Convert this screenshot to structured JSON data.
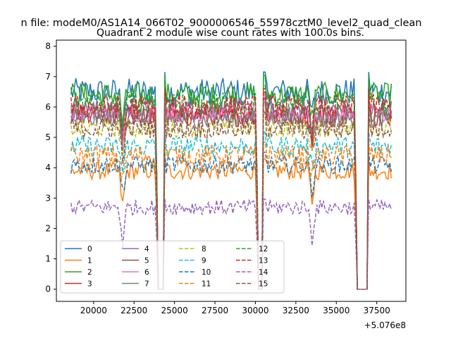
{
  "chart_data": {
    "type": "line",
    "suptitle": "n file: modeM0/AS1A14_066T02_9000006546_55978cztM0_level2_quad_clean",
    "title": "Quadrant 2 module wise count rates with 100.0s bins.",
    "xlabel": "",
    "ylabel": "",
    "x_offset_label": "+5.076e8",
    "xlim": [
      17700,
      39300
    ],
    "ylim": [
      -0.4,
      8.2
    ],
    "xticks": [
      20000,
      22500,
      25000,
      27500,
      30000,
      32500,
      35000,
      37500
    ],
    "xtick_labels": [
      "20000",
      "22500",
      "25000",
      "27500",
      "30000",
      "32500",
      "35000",
      "37500"
    ],
    "yticks": [
      0,
      1,
      2,
      3,
      4,
      5,
      6,
      7,
      8
    ],
    "ytick_labels": [
      "0",
      "1",
      "2",
      "3",
      "4",
      "5",
      "6",
      "7",
      "8"
    ],
    "x_range_data": [
      18600,
      38400
    ],
    "bin_seconds": 100,
    "gaps": [
      [
        23950,
        24350
      ],
      [
        30150,
        30500
      ],
      [
        36250,
        36950
      ]
    ],
    "dips": [
      {
        "x": 21800,
        "depth": 0.9
      },
      {
        "x": 33500,
        "depth": 0.8
      }
    ],
    "legend": {
      "placement": "lower-left",
      "columns": 4
    },
    "series": [
      {
        "name": "0",
        "level": 6.5,
        "amp": 0.45,
        "color": "#1f77b4",
        "style": "solid"
      },
      {
        "name": "1",
        "level": 3.9,
        "amp": 0.3,
        "color": "#ff7f0e",
        "style": "solid"
      },
      {
        "name": "2",
        "level": 6.4,
        "amp": 0.4,
        "color": "#2ca02c",
        "style": "solid"
      },
      {
        "name": "3",
        "level": 5.7,
        "amp": 0.35,
        "color": "#d62728",
        "style": "solid"
      },
      {
        "name": "4",
        "level": 5.9,
        "amp": 0.35,
        "color": "#9467bd",
        "style": "solid"
      },
      {
        "name": "5",
        "level": 5.8,
        "amp": 0.35,
        "color": "#8c564b",
        "style": "solid"
      },
      {
        "name": "6",
        "level": 5.8,
        "amp": 0.3,
        "color": "#e377c2",
        "style": "solid"
      },
      {
        "name": "7",
        "level": 5.6,
        "amp": 0.3,
        "color": "#7f7f7f",
        "style": "solid"
      },
      {
        "name": "8",
        "level": 5.3,
        "amp": 0.3,
        "color": "#bcbd22",
        "style": "dashed"
      },
      {
        "name": "9",
        "level": 4.7,
        "amp": 0.35,
        "color": "#17becf",
        "style": "dashed"
      },
      {
        "name": "10",
        "level": 4.1,
        "amp": 0.3,
        "color": "#1f77b4",
        "style": "dashed"
      },
      {
        "name": "11",
        "level": 4.4,
        "amp": 0.35,
        "color": "#ff7f0e",
        "style": "dashed"
      },
      {
        "name": "12",
        "level": 6.1,
        "amp": 0.4,
        "color": "#2ca02c",
        "style": "dashed"
      },
      {
        "name": "13",
        "level": 6.0,
        "amp": 0.4,
        "color": "#d62728",
        "style": "dashed"
      },
      {
        "name": "14",
        "level": 2.7,
        "amp": 0.25,
        "color": "#9467bd",
        "style": "dashed"
      },
      {
        "name": "15",
        "level": 5.3,
        "amp": 0.35,
        "color": "#8c564b",
        "style": "dashed"
      }
    ]
  }
}
